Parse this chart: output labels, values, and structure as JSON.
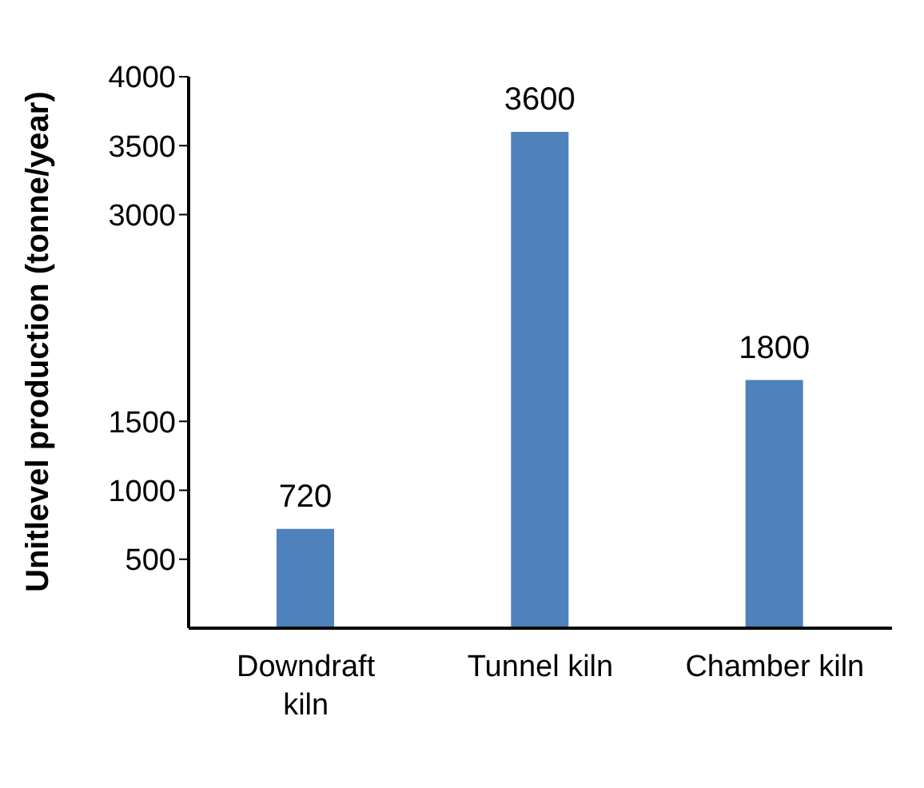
{
  "chart_data": {
    "type": "bar",
    "ylabel": "Unitlevel production (tonne/year)",
    "categories": [
      "Downdraft kiln",
      "Tunnel kiln",
      "Chamber kiln"
    ],
    "color": "#4f81bd",
    "values": [
      720,
      3600,
      1800
    ],
    "data_labels": true,
    "ylim": [
      0,
      4000
    ],
    "yticks": [
      500,
      1000,
      1500,
      3000,
      3500,
      4000
    ]
  }
}
